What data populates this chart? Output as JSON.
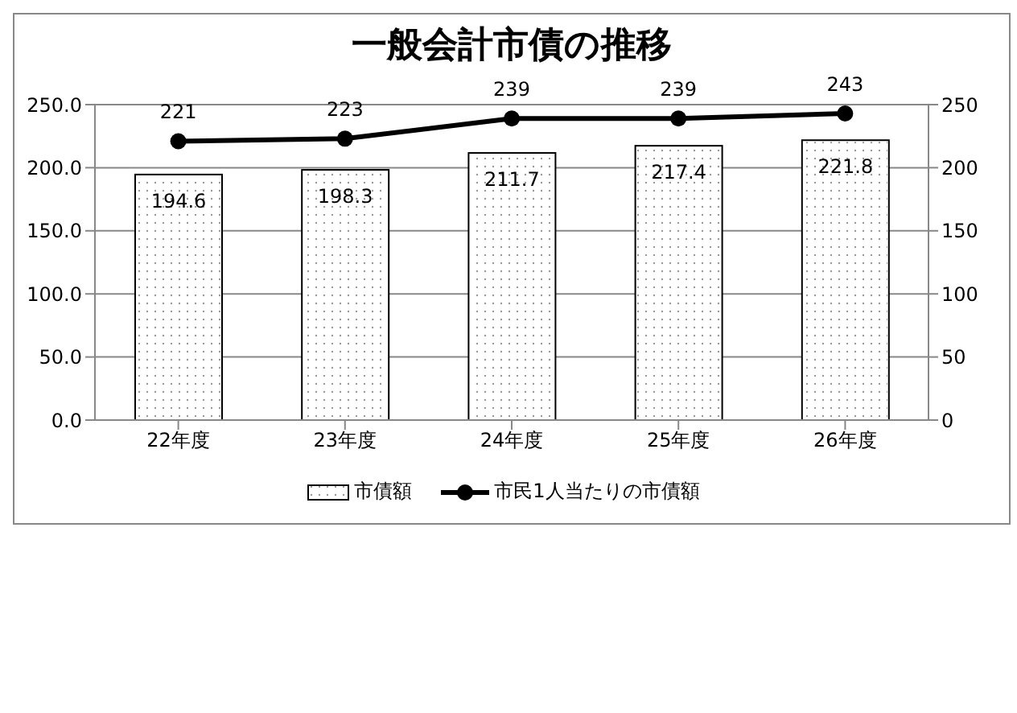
{
  "chart_data": {
    "type": "bar",
    "title": "一般会計市債の推移",
    "categories": [
      "22年度",
      "23年度",
      "24年度",
      "25年度",
      "26年度"
    ],
    "series": [
      {
        "name": "市債額",
        "color": "#ffffff",
        "values": [
          194.6,
          198.3,
          211.7,
          217.4,
          221.8
        ]
      },
      {
        "name": "市民1人当たりの市債額",
        "type": "line",
        "axis": "y2",
        "color": "#000000",
        "values": [
          221,
          223,
          239,
          239,
          243
        ]
      }
    ],
    "ylim": [
      0,
      250
    ],
    "yticks": [
      {
        "value": 0,
        "label": "0.0"
      },
      {
        "value": 50,
        "label": "50.0"
      },
      {
        "value": 100,
        "label": "100.0"
      },
      {
        "value": 150,
        "label": "150.0"
      },
      {
        "value": 200,
        "label": "200.0"
      },
      {
        "value": 250,
        "label": "250.0"
      }
    ],
    "y2lim": [
      0,
      250
    ],
    "y2ticks": [
      0,
      50,
      100,
      150,
      200,
      250
    ],
    "grid": "y",
    "legend": "bottom",
    "marker": "circle",
    "line_style": "solid",
    "data_labels": true
  }
}
